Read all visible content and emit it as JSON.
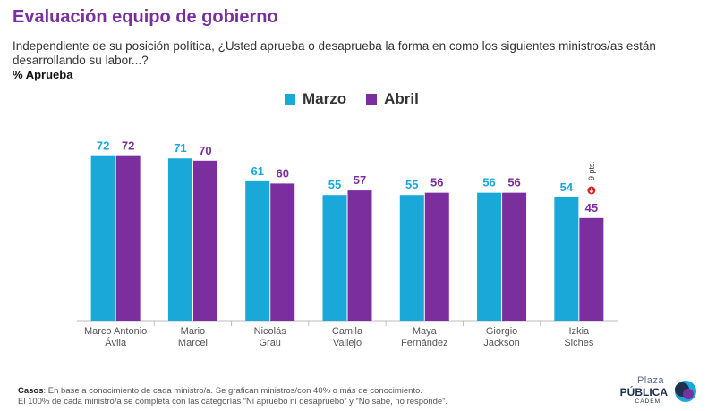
{
  "title": "Evaluación equipo de gobierno",
  "subtitle": "Independiente de su posición política, ¿Usted aprueba o desaprueba la forma en como los siguientes ministros/as están desarrollando su labor...?",
  "metric_label": "% Aprueba",
  "colors": {
    "marzo": "#1aa8d8",
    "abril": "#7b2f9f",
    "title": "#7b2f9f",
    "badge": "#e02020"
  },
  "chart_data": {
    "type": "bar",
    "categories": [
      [
        "Marco Antonio",
        "Ávila"
      ],
      [
        "Mario",
        "Marcel"
      ],
      [
        "Nicolás",
        "Grau"
      ],
      [
        "Camila",
        "Vallejo"
      ],
      [
        "Maya",
        "Fernández"
      ],
      [
        "Giorgio",
        "Jackson"
      ],
      [
        "Izkia",
        "Siches"
      ]
    ],
    "series": [
      {
        "name": "Marzo",
        "values": [
          72,
          71,
          61,
          55,
          55,
          56,
          54
        ]
      },
      {
        "name": "Abril",
        "values": [
          72,
          70,
          60,
          57,
          56,
          56,
          45
        ]
      }
    ],
    "ylim": [
      0,
      100
    ],
    "annotations": [
      {
        "category_index": 6,
        "text": "-9 pts."
      }
    ]
  },
  "footnote": {
    "label": "Casos",
    "line1": ": En base a conocimiento de cada ministro/a. Se grafican ministros/con 40% o más de conocimiento.",
    "line2": "El 100% de cada ministro/a se completa con las categorías “Ni apruebo ni desapruebo” y “No sabe, no responde”."
  },
  "logo": {
    "line1": "Plaza",
    "line2": "PÚBLICA",
    "line3": "CADEM"
  }
}
